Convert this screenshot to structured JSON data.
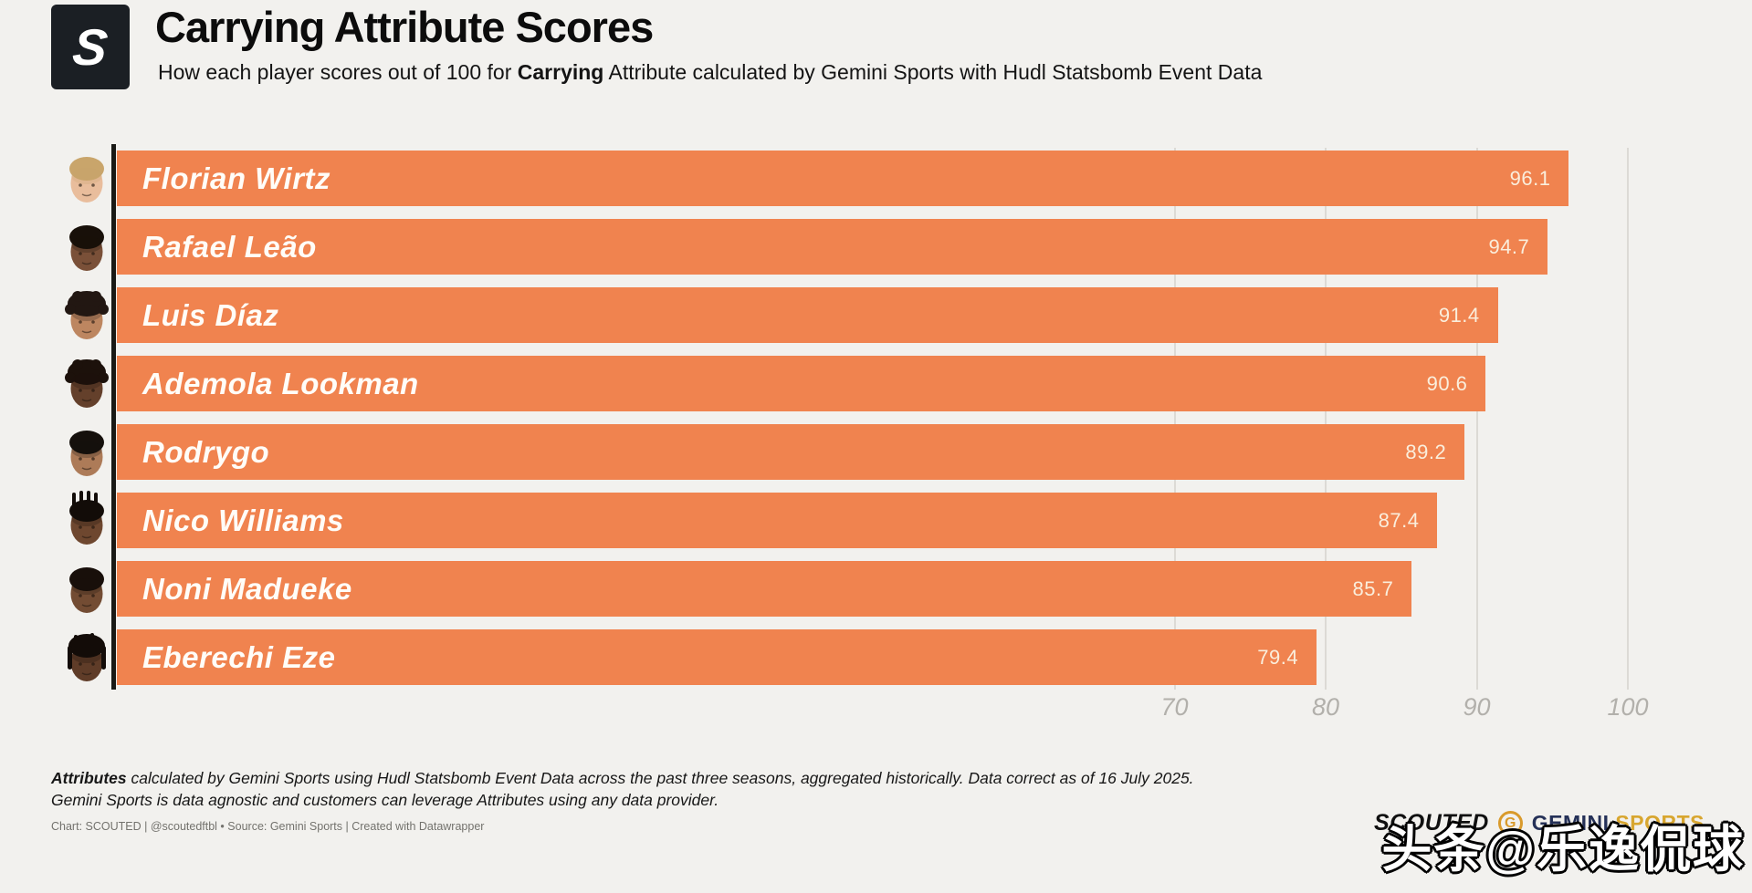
{
  "page": {
    "background": "#F2F1EE"
  },
  "header": {
    "logo_letter": "S",
    "title": "Carrying Attribute Scores",
    "subtitle_prefix": "How each player scores out of 100 for ",
    "subtitle_bold": "Carrying",
    "subtitle_suffix": " Attribute calculated by Gemini Sports with Hudl Statsbomb Event Data"
  },
  "chart_data": {
    "type": "bar",
    "orientation": "horizontal",
    "title": "Carrying Attribute Scores",
    "categories": [
      "Florian Wirtz",
      "Rafael Leão",
      "Luis Díaz",
      "Ademola Lookman",
      "Rodrygo",
      "Nico Williams",
      "Noni Madueke",
      "Eberechi Eze"
    ],
    "values": [
      96.1,
      94.7,
      91.4,
      90.6,
      89.2,
      87.4,
      85.7,
      79.4
    ],
    "x_ticks": [
      70,
      80,
      90,
      100
    ],
    "xlim": [
      0,
      104
    ],
    "grid": "vertical-gridlines-under-bars",
    "bar_color": "#F0834F",
    "value_label_color": "#FAEEDC",
    "players": [
      {
        "name": "Florian Wirtz",
        "value": 96.1,
        "avatar": {
          "skin": "#E9BD9C",
          "hair": "#C9A56B",
          "style": "short"
        }
      },
      {
        "name": "Rafael Leão",
        "value": 94.7,
        "avatar": {
          "skin": "#7A5038",
          "hair": "#181009",
          "style": "short"
        }
      },
      {
        "name": "Luis Díaz",
        "value": 91.4,
        "avatar": {
          "skin": "#BD8660",
          "hair": "#221712",
          "style": "curly"
        }
      },
      {
        "name": "Ademola Lookman",
        "value": 90.6,
        "avatar": {
          "skin": "#64402B",
          "hair": "#1C110B",
          "style": "curly"
        }
      },
      {
        "name": "Rodrygo",
        "value": 89.2,
        "avatar": {
          "skin": "#AD7B58",
          "hair": "#15100C",
          "style": "short"
        }
      },
      {
        "name": "Nico Williams",
        "value": 87.4,
        "avatar": {
          "skin": "#6E472F",
          "hair": "#120C08",
          "style": "spiky"
        }
      },
      {
        "name": "Noni Madueke",
        "value": 85.7,
        "avatar": {
          "skin": "#734C33",
          "hair": "#180F0A",
          "style": "short"
        }
      },
      {
        "name": "Eberechi Eze",
        "value": 79.4,
        "avatar": {
          "skin": "#5F3C28",
          "hair": "#130C08",
          "style": "dreads"
        }
      }
    ]
  },
  "footnote": {
    "line1_bold": "Attributes",
    "line1_rest": " calculated by Gemini Sports using Hudl Statsbomb Event Data across the past three seasons, aggregated historically. Data correct as of 16 July 2025.",
    "line2": "Gemini Sports is data agnostic and customers can leverage Attributes using any data provider."
  },
  "byline": "Chart: SCOUTED | @scoutedftbl • Source: Gemini Sports | Created with Datawrapper",
  "branding": {
    "scouted": "SCOUTED",
    "gemini_g": "G",
    "gemini_word": "GEMINI",
    "sports_word": "SPORTS",
    "gemini_color": "#253158",
    "sports_color": "#D8A62F"
  },
  "watermark": "头条@乐逸侃球"
}
